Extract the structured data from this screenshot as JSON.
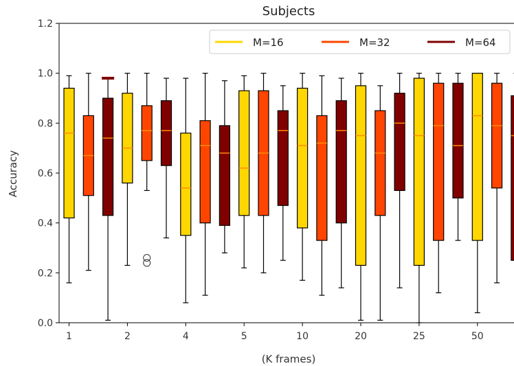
{
  "chart_data": {
    "type": "box",
    "title": "Subjects",
    "xlabel": "(K frames)",
    "ylabel": "Accuracy",
    "ylim": [
      0,
      1.2
    ],
    "yticks": [
      "0.0",
      "0.2",
      "0.4",
      "0.6",
      "0.8",
      "1.0",
      "1.2"
    ],
    "categories": [
      "1",
      "2",
      "4",
      "5",
      "10",
      "20",
      "25",
      "50"
    ],
    "grid": false,
    "legend_position": "top-right",
    "series": [
      {
        "name": "M=16",
        "color": "#FFD700",
        "median_color": "#FF8C00",
        "boxes": [
          {
            "min": 0.16,
            "q1": 0.42,
            "median": 0.76,
            "q3": 0.94,
            "max": 0.99,
            "fliers": [],
            "max_marker": false
          },
          {
            "min": 0.23,
            "q1": 0.56,
            "median": 0.7,
            "q3": 0.92,
            "max": 1.0,
            "fliers": [],
            "max_marker": false
          },
          {
            "min": 0.08,
            "q1": 0.35,
            "median": 0.54,
            "q3": 0.76,
            "max": 0.98,
            "fliers": [],
            "max_marker": false
          },
          {
            "min": 0.22,
            "q1": 0.43,
            "median": 0.62,
            "q3": 0.93,
            "max": 0.99,
            "fliers": [],
            "max_marker": false
          },
          {
            "min": 0.17,
            "q1": 0.38,
            "median": 0.71,
            "q3": 0.94,
            "max": 1.0,
            "fliers": [],
            "max_marker": false
          },
          {
            "min": 0.01,
            "q1": 0.23,
            "median": 0.75,
            "q3": 0.95,
            "max": 1.0,
            "fliers": [],
            "max_marker": false
          },
          {
            "min": 0.0,
            "q1": 0.23,
            "median": 0.75,
            "q3": 0.98,
            "max": 1.0,
            "fliers": [],
            "max_marker": false
          },
          {
            "min": 0.04,
            "q1": 0.33,
            "median": 0.83,
            "q3": 1.0,
            "max": 1.0,
            "fliers": [],
            "max_marker": false
          }
        ]
      },
      {
        "name": "M=32",
        "color": "#FF4500",
        "median_color": "#FF8C00",
        "boxes": [
          {
            "min": 0.21,
            "q1": 0.51,
            "median": 0.67,
            "q3": 0.83,
            "max": 1.0,
            "fliers": [],
            "max_marker": false
          },
          {
            "min": 0.53,
            "q1": 0.65,
            "median": 0.77,
            "q3": 0.87,
            "max": 1.0,
            "fliers": [
              0.24,
              0.26
            ],
            "max_marker": false
          },
          {
            "min": 0.11,
            "q1": 0.4,
            "median": 0.71,
            "q3": 0.81,
            "max": 1.0,
            "fliers": [],
            "max_marker": false
          },
          {
            "min": 0.2,
            "q1": 0.43,
            "median": 0.68,
            "q3": 0.93,
            "max": 1.0,
            "fliers": [],
            "max_marker": false
          },
          {
            "min": 0.11,
            "q1": 0.33,
            "median": 0.72,
            "q3": 0.83,
            "max": 0.99,
            "fliers": [],
            "max_marker": false
          },
          {
            "min": 0.01,
            "q1": 0.43,
            "median": 0.68,
            "q3": 0.85,
            "max": 0.95,
            "fliers": [],
            "max_marker": false
          },
          {
            "min": 0.12,
            "q1": 0.33,
            "median": 0.79,
            "q3": 0.96,
            "max": 1.0,
            "fliers": [],
            "max_marker": false
          },
          {
            "min": 0.16,
            "q1": 0.54,
            "median": 0.79,
            "q3": 0.96,
            "max": 1.0,
            "fliers": [],
            "max_marker": false
          }
        ]
      },
      {
        "name": "M=64",
        "color": "#800000",
        "median_color": "#FF8C00",
        "boxes": [
          {
            "min": 0.01,
            "q1": 0.43,
            "median": 0.74,
            "q3": 0.9,
            "max": 0.98,
            "fliers": [],
            "max_marker": true
          },
          {
            "min": 0.34,
            "q1": 0.63,
            "median": 0.77,
            "q3": 0.89,
            "max": 0.98,
            "fliers": [],
            "max_marker": false
          },
          {
            "min": 0.28,
            "q1": 0.39,
            "median": 0.68,
            "q3": 0.79,
            "max": 0.97,
            "fliers": [],
            "max_marker": false
          },
          {
            "min": 0.25,
            "q1": 0.47,
            "median": 0.77,
            "q3": 0.85,
            "max": 0.95,
            "fliers": [],
            "max_marker": false
          },
          {
            "min": 0.14,
            "q1": 0.4,
            "median": 0.77,
            "q3": 0.89,
            "max": 0.98,
            "fliers": [],
            "max_marker": false
          },
          {
            "min": 0.14,
            "q1": 0.53,
            "median": 0.8,
            "q3": 0.92,
            "max": 1.0,
            "fliers": [],
            "max_marker": false
          },
          {
            "min": 0.33,
            "q1": 0.5,
            "median": 0.71,
            "q3": 0.96,
            "max": 1.0,
            "fliers": [],
            "max_marker": false
          },
          {
            "min": 0.0,
            "q1": 0.25,
            "median": 0.75,
            "q3": 0.91,
            "max": 1.0,
            "fliers": [],
            "max_marker": false
          }
        ]
      }
    ]
  }
}
